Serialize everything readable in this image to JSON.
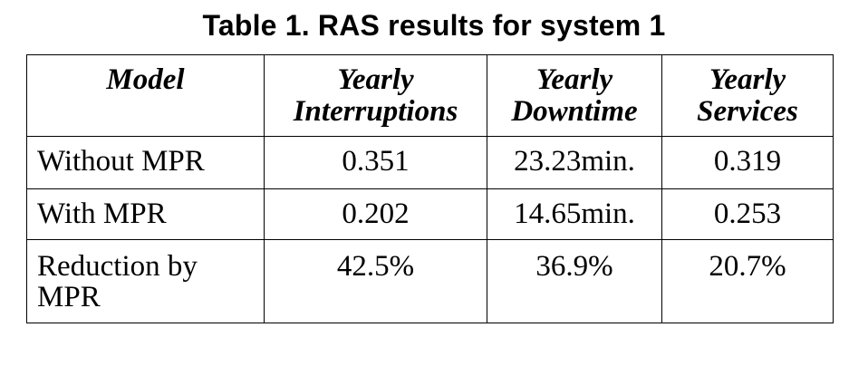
{
  "caption": "Table 1. RAS results for system 1",
  "table": {
    "headers": {
      "model": "Model",
      "interruptions_line1": "Yearly",
      "interruptions_line2": "Interruptions",
      "downtime_line1": "Yearly",
      "downtime_line2": "Downtime",
      "services_line1": "Yearly",
      "services_line2": "Services"
    },
    "rows": [
      {
        "model": "Without MPR",
        "interruptions": "0.351",
        "downtime": "23.23min.",
        "services": "0.319"
      },
      {
        "model": "With MPR",
        "interruptions": "0.202",
        "downtime": "14.65min.",
        "services": "0.253"
      },
      {
        "model_line1": "Reduction by",
        "model_line2": "MPR",
        "interruptions": "42.5%",
        "downtime": "36.9%",
        "services": "20.7%"
      }
    ]
  }
}
